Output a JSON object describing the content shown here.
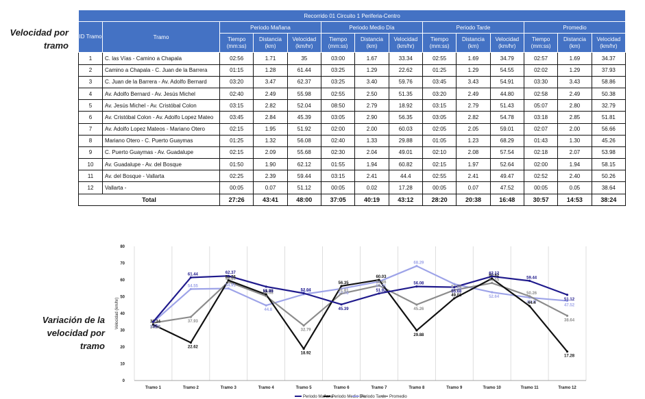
{
  "side_labels": {
    "table": [
      "Velocidad por",
      "tramo"
    ],
    "chart": [
      "Variación de la",
      "velocidad por",
      "tramo"
    ]
  },
  "table": {
    "title": "Recorrido 01 Circuito 1 Periferia-Centro",
    "col_id": "ID Tramo",
    "col_tramo": "Tramo",
    "periods": [
      "Periodo Mañana",
      "Periodo Medio Día",
      "Periodo Tarde",
      "Promedio"
    ],
    "subcols": [
      "Tiempo (mm:ss)",
      "Distancia (km)",
      "Velocidad (km/hr)"
    ],
    "rows": [
      {
        "id": "1",
        "name": "C. las Vías - Camino a Chapala",
        "v": [
          "02:56",
          "1.71",
          "35",
          "03:00",
          "1.67",
          "33.34",
          "02:55",
          "1.69",
          "34.79",
          "02:57",
          "1.69",
          "34.37"
        ]
      },
      {
        "id": "2",
        "name": "Camino a Chapala - C. Juan de la Barrera",
        "v": [
          "01:15",
          "1.28",
          "61.44",
          "03:25",
          "1.29",
          "22.62",
          "01:25",
          "1.29",
          "54.55",
          "02:02",
          "1.29",
          "37.93"
        ]
      },
      {
        "id": "3",
        "name": "C. Juan de la Barrera - Av. Adolfo Bernard",
        "v": [
          "03:20",
          "3.47",
          "62.37",
          "03:25",
          "3.40",
          "59.76",
          "03:45",
          "3.43",
          "54.91",
          "03:30",
          "3.43",
          "58.86"
        ]
      },
      {
        "id": "4",
        "name": "Av. Adolfo Bernard - Av. Jesús Michel",
        "v": [
          "02:40",
          "2.49",
          "55.98",
          "02:55",
          "2.50",
          "51.35",
          "03:20",
          "2.49",
          "44.80",
          "02:58",
          "2.49",
          "50.38"
        ]
      },
      {
        "id": "5",
        "name": "Av. Jesús Michel - Av. Cristóbal Colon",
        "v": [
          "03:15",
          "2.82",
          "52.04",
          "08:50",
          "2.79",
          "18.92",
          "03:15",
          "2.79",
          "51.43",
          "05:07",
          "2.80",
          "32.79"
        ]
      },
      {
        "id": "6",
        "name": "Av. Cristóbal Colon - Av. Adolfo Lopez Mateo",
        "v": [
          "03:45",
          "2.84",
          "45.39",
          "03:05",
          "2.90",
          "56.35",
          "03:05",
          "2.82",
          "54.78",
          "03:18",
          "2.85",
          "51.81"
        ]
      },
      {
        "id": "7",
        "name": "Av. Adolfo Lopez Mateos - Mariano Otero",
        "v": [
          "02:15",
          "1.95",
          "51.92",
          "02:00",
          "2.00",
          "60.03",
          "02:05",
          "2.05",
          "59.01",
          "02:07",
          "2.00",
          "56.66"
        ]
      },
      {
        "id": "8",
        "name": "Mariano Otero - C. Puerto Guaymas",
        "v": [
          "01:25",
          "1.32",
          "56.08",
          "02:40",
          "1.33",
          "29.88",
          "01:05",
          "1.23",
          "68.29",
          "01:43",
          "1.30",
          "45.26"
        ]
      },
      {
        "id": "9",
        "name": "C. Puerto Guaymas - Av. Guadalupe",
        "v": [
          "02:15",
          "2.09",
          "55.68",
          "02:30",
          "2.04",
          "49.01",
          "02:10",
          "2.08",
          "57.54",
          "02:18",
          "2.07",
          "53.98"
        ]
      },
      {
        "id": "10",
        "name": "Av. Guadalupe - Av. del Bosque",
        "v": [
          "01:50",
          "1.90",
          "62.12",
          "01:55",
          "1.94",
          "60.82",
          "02:15",
          "1.97",
          "52.64",
          "02:00",
          "1.94",
          "58.15"
        ]
      },
      {
        "id": "11",
        "name": "Av. del Bosque - Vallarta",
        "v": [
          "02:25",
          "2.39",
          "59.44",
          "03:15",
          "2.41",
          "44.4",
          "02:55",
          "2.41",
          "49.47",
          "02:52",
          "2.40",
          "50.26"
        ]
      },
      {
        "id": "12",
        "name": "Vallarta -",
        "v": [
          "00:05",
          "0.07",
          "51.12",
          "00:05",
          "0.02",
          "17.28",
          "00:05",
          "0.07",
          "47.52",
          "00:05",
          "0.05",
          "38.64"
        ]
      }
    ],
    "total": {
      "label": "Total",
      "v": [
        "27:26",
        "43:41",
        "48:00",
        "37:05",
        "40:19",
        "43:12",
        "28:20",
        "20:38",
        "16:48",
        "30:57",
        "14:53",
        "38:24"
      ]
    }
  },
  "chart_data": {
    "type": "line",
    "title": "",
    "xlabel": "",
    "ylabel": "Velocidad (km/hr)",
    "ylim": [
      0,
      80
    ],
    "yticks": [
      0,
      10,
      20,
      30,
      40,
      50,
      60,
      70,
      80
    ],
    "grid": "vertical",
    "legend": "bottom",
    "categories": [
      "Tramo 1",
      "Tramo 2",
      "Tramo 3",
      "Tramo 4",
      "Tramo 5",
      "Tramo 6",
      "Tramo 7",
      "Tramo 8",
      "Tramo 9",
      "Tramo 10",
      "Tramo 11",
      "Tramo 12"
    ],
    "series": [
      {
        "name": "Periodo Mañana",
        "color": "#1f1a8c",
        "values": [
          35,
          61.44,
          62.37,
          55.98,
          52.04,
          45.39,
          51.92,
          56.08,
          55.68,
          62.12,
          59.44,
          51.12
        ]
      },
      {
        "name": "Periodo Medio Día",
        "color": "#111111",
        "values": [
          33.34,
          22.62,
          59.76,
          51.35,
          18.92,
          56.35,
          60.03,
          29.88,
          49.01,
          60.82,
          44.4,
          17.28
        ]
      },
      {
        "name": "Periodo Tarde",
        "color": "#9da3e8",
        "values": [
          34.79,
          54.55,
          54.91,
          44.8,
          51.43,
          54.78,
          59.01,
          68.29,
          57.54,
          52.64,
          49.47,
          47.52
        ]
      },
      {
        "name": "Promedio",
        "color": "#8c8c8c",
        "values": [
          34.37,
          37.93,
          58.86,
          50.38,
          32.79,
          51.81,
          56.66,
          45.26,
          53.98,
          58.15,
          50.26,
          38.64
        ]
      }
    ]
  }
}
